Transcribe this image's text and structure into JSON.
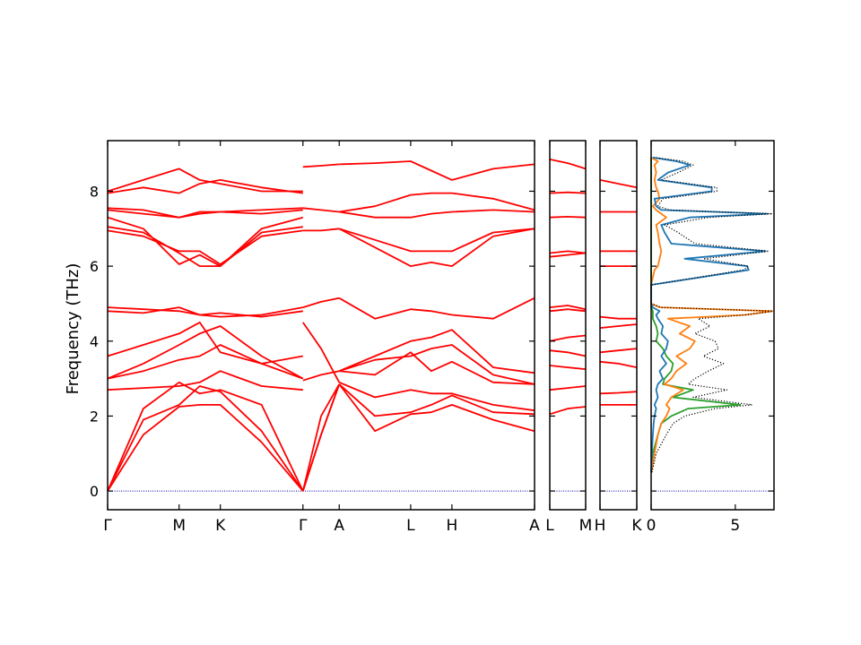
{
  "figure": {
    "ylabel": "Frequency (THz)"
  },
  "colors": {
    "band": "#ff0000",
    "zero_line": "#0000aa",
    "dos_total": "#000000",
    "dos_blue": "#1f77b4",
    "dos_orange": "#ff7f0e",
    "dos_green": "#2ca02c"
  },
  "chart_data": [
    {
      "type": "line",
      "name_hint": "band-structure-main",
      "ylim": [
        -0.5,
        9.35
      ],
      "yticks": [
        0,
        2,
        4,
        6,
        8
      ],
      "x_labels": [
        "Γ",
        "M",
        "K",
        "Γ",
        "A",
        "L",
        "H",
        "A"
      ],
      "x_label_positions": [
        0,
        0.577,
        0.91,
        1.577,
        1.87,
        2.447,
        2.78,
        3.447
      ],
      "segments": [
        {
          "from": "Γ",
          "to": "Γ",
          "x": [
            0,
            0.2885,
            0.577,
            0.7435,
            0.91,
            1.2435,
            1.577
          ],
          "branches": [
            [
              0,
              1.5,
              2.25,
              2.3,
              2.3,
              1.3,
              0
            ],
            [
              0,
              1.9,
              2.3,
              2.8,
              2.65,
              1.6,
              0
            ],
            [
              0,
              2.2,
              2.9,
              2.6,
              2.7,
              2.3,
              0
            ],
            [
              2.7,
              2.75,
              2.8,
              2.9,
              3.2,
              2.8,
              2.7
            ],
            [
              3.0,
              3.2,
              3.5,
              3.6,
              3.9,
              3.4,
              3.0
            ],
            [
              3.0,
              3.4,
              3.9,
              4.2,
              4.4,
              3.6,
              3.0
            ],
            [
              3.6,
              3.9,
              4.2,
              4.5,
              3.7,
              3.4,
              3.6
            ],
            [
              4.9,
              4.85,
              4.8,
              4.7,
              4.65,
              4.7,
              4.9
            ],
            [
              4.8,
              4.75,
              4.9,
              4.7,
              4.75,
              4.65,
              4.8
            ],
            [
              6.95,
              6.8,
              6.4,
              6.4,
              6.05,
              6.8,
              6.95
            ],
            [
              7.05,
              6.9,
              6.35,
              6.0,
              6.0,
              6.9,
              7.05
            ],
            [
              7.3,
              7.0,
              6.05,
              6.3,
              6.0,
              7.0,
              7.3
            ],
            [
              7.5,
              7.4,
              7.3,
              7.4,
              7.45,
              7.4,
              7.5
            ],
            [
              7.55,
              7.5,
              7.3,
              7.45,
              7.45,
              7.5,
              7.55
            ],
            [
              7.95,
              8.1,
              7.95,
              8.2,
              8.3,
              8.1,
              7.95
            ],
            [
              8.0,
              8.3,
              8.6,
              8.3,
              8.2,
              8.0,
              8.0
            ]
          ]
        },
        {
          "from": "Γ",
          "to": "A",
          "x": [
            1.577,
            1.7235,
            1.87
          ],
          "branches": [
            [
              0,
              1.5,
              2.85
            ],
            [
              0,
              1.5,
              2.85
            ],
            [
              0,
              2.0,
              2.85
            ],
            [
              4.5,
              3.8,
              2.9
            ],
            [
              2.95,
              3.1,
              3.2
            ],
            [
              4.9,
              5.05,
              5.15
            ],
            [
              6.95,
              6.95,
              7.0
            ],
            [
              7.55,
              7.5,
              7.45
            ],
            [
              8.65,
              8.68,
              8.72
            ]
          ]
        },
        {
          "from": "A",
          "to": "A",
          "x": [
            1.87,
            2.1585,
            2.447,
            2.6135,
            2.78,
            3.1135,
            3.447
          ],
          "branches": [
            [
              2.85,
              2.0,
              2.1,
              2.3,
              2.55,
              2.1,
              2.05
            ],
            [
              2.85,
              1.6,
              2.05,
              2.1,
              2.3,
              1.9,
              1.6
            ],
            [
              2.9,
              2.5,
              2.7,
              2.6,
              2.6,
              2.3,
              2.15
            ],
            [
              3.2,
              3.1,
              3.7,
              3.2,
              3.45,
              2.9,
              2.85
            ],
            [
              3.2,
              3.5,
              3.6,
              3.8,
              3.9,
              3.1,
              2.85
            ],
            [
              3.2,
              3.6,
              4.0,
              4.1,
              4.3,
              3.3,
              3.15
            ],
            [
              5.15,
              4.6,
              4.85,
              4.8,
              4.7,
              4.6,
              5.15
            ],
            [
              7.0,
              6.7,
              6.4,
              6.4,
              6.4,
              6.9,
              7.0
            ],
            [
              7.0,
              6.5,
              6.0,
              6.1,
              6.0,
              6.8,
              7.0
            ],
            [
              7.45,
              7.3,
              7.3,
              7.4,
              7.45,
              7.5,
              7.45
            ],
            [
              7.45,
              7.6,
              7.9,
              7.95,
              7.95,
              7.8,
              7.5
            ],
            [
              8.72,
              8.75,
              8.8,
              8.55,
              8.3,
              8.6,
              8.72
            ]
          ]
        }
      ]
    },
    {
      "type": "line",
      "name_hint": "band-structure-L-M",
      "ylim": [
        -0.5,
        9.35
      ],
      "x_labels": [
        "L",
        "M"
      ],
      "x_label_positions": [
        0,
        1
      ],
      "x": [
        0,
        0.5,
        1
      ],
      "branches": [
        [
          2.05,
          2.2,
          2.25
        ],
        [
          2.7,
          2.75,
          2.8
        ],
        [
          3.35,
          3.3,
          3.25
        ],
        [
          3.75,
          3.7,
          3.6
        ],
        [
          4.0,
          4.1,
          4.15
        ],
        [
          4.8,
          4.85,
          4.8
        ],
        [
          4.9,
          4.95,
          4.85
        ],
        [
          6.25,
          6.3,
          6.35
        ],
        [
          6.35,
          6.4,
          6.35
        ],
        [
          7.3,
          7.32,
          7.3
        ],
        [
          7.95,
          7.97,
          7.95
        ],
        [
          8.85,
          8.75,
          8.6
        ]
      ]
    },
    {
      "type": "line",
      "name_hint": "band-structure-H-K",
      "ylim": [
        -0.5,
        9.35
      ],
      "x_labels": [
        "H",
        "K"
      ],
      "x_label_positions": [
        0,
        1
      ],
      "x": [
        0,
        0.5,
        1
      ],
      "branches": [
        [
          2.3,
          2.3,
          2.3
        ],
        [
          2.6,
          2.62,
          2.65
        ],
        [
          3.45,
          3.4,
          3.3
        ],
        [
          3.7,
          3.75,
          3.8
        ],
        [
          4.35,
          4.4,
          4.45
        ],
        [
          4.65,
          4.6,
          4.6
        ],
        [
          6.0,
          6.0,
          6.0
        ],
        [
          6.4,
          6.4,
          6.4
        ],
        [
          7.45,
          7.45,
          7.45
        ],
        [
          8.3,
          8.2,
          8.1
        ]
      ]
    },
    {
      "type": "line",
      "name_hint": "phonon-dos",
      "ylim": [
        -0.5,
        9.35
      ],
      "xlim": [
        0,
        7.3
      ],
      "xticks": [
        0,
        5
      ],
      "y": [
        0.5,
        1.0,
        1.5,
        1.8,
        2.0,
        2.2,
        2.3,
        2.5,
        2.7,
        2.85,
        3.0,
        3.2,
        3.4,
        3.6,
        3.8,
        4.0,
        4.2,
        4.4,
        4.6,
        4.7,
        4.8,
        4.9,
        5.0,
        5.5,
        5.9,
        6.0,
        6.2,
        6.4,
        6.6,
        6.9,
        7.1,
        7.3,
        7.4,
        7.5,
        7.6,
        7.8,
        8.0,
        8.1,
        8.3,
        8.5,
        8.7,
        8.8,
        8.9
      ],
      "series": [
        {
          "style": "dotted",
          "color": "#000000",
          "values": [
            0.05,
            0.3,
            0.9,
            1.3,
            2.0,
            3.8,
            6.0,
            2.5,
            4.5,
            2.2,
            2.6,
            3.4,
            4.3,
            3.1,
            4.0,
            3.8,
            2.6,
            3.5,
            2.8,
            5.6,
            7.3,
            0.6,
            0.0,
            0.0,
            5.5,
            5.8,
            3.1,
            7.0,
            2.6,
            1.6,
            0.8,
            3.4,
            7.2,
            1.1,
            0.4,
            0.7,
            3.9,
            3.9,
            0.6,
            1.6,
            2.5,
            1.9,
            0.2
          ]
        },
        {
          "style": "solid",
          "color": "#1f77b4",
          "values": [
            0.0,
            0.05,
            0.1,
            0.15,
            0.2,
            0.3,
            0.2,
            0.4,
            0.3,
            0.4,
            0.7,
            0.5,
            0.9,
            0.6,
            0.9,
            1.0,
            0.6,
            0.7,
            0.4,
            0.3,
            0.5,
            0.1,
            0.0,
            0.0,
            5.8,
            5.7,
            2.0,
            6.8,
            1.2,
            0.8,
            0.6,
            2.3,
            6.9,
            0.6,
            0.3,
            0.2,
            3.6,
            3.6,
            0.4,
            1.0,
            2.3,
            1.5,
            0.1
          ]
        },
        {
          "style": "solid",
          "color": "#ff7f0e",
          "values": [
            0.02,
            0.2,
            0.4,
            0.6,
            0.9,
            1.1,
            0.9,
            1.2,
            1.9,
            0.8,
            1.2,
            1.5,
            2.1,
            1.5,
            2.3,
            2.6,
            1.7,
            2.3,
            1.0,
            5.6,
            7.2,
            0.5,
            0.0,
            0.0,
            0.2,
            0.4,
            0.5,
            0.6,
            0.5,
            0.4,
            0.3,
            0.9,
            0.6,
            0.3,
            0.1,
            0.5,
            0.4,
            0.3,
            0.2,
            0.3,
            0.2,
            0.4,
            0.0
          ]
        },
        {
          "style": "solid",
          "color": "#2ca02c",
          "values": [
            0.02,
            0.1,
            0.4,
            0.6,
            1.2,
            2.2,
            5.3,
            1.3,
            2.5,
            0.7,
            0.8,
            1.2,
            1.3,
            0.9,
            0.7,
            0.3,
            0.4,
            0.3,
            0.1,
            0.1,
            0.1,
            0.0,
            0.0,
            0.0,
            0.0,
            0.0,
            0.0,
            0.0,
            0.0,
            0.0,
            0.0,
            0.0,
            0.0,
            0.0,
            0.0,
            0.0,
            0.0,
            0.0,
            0.0,
            0.0,
            0.0,
            0.0,
            0.0
          ]
        }
      ]
    }
  ]
}
